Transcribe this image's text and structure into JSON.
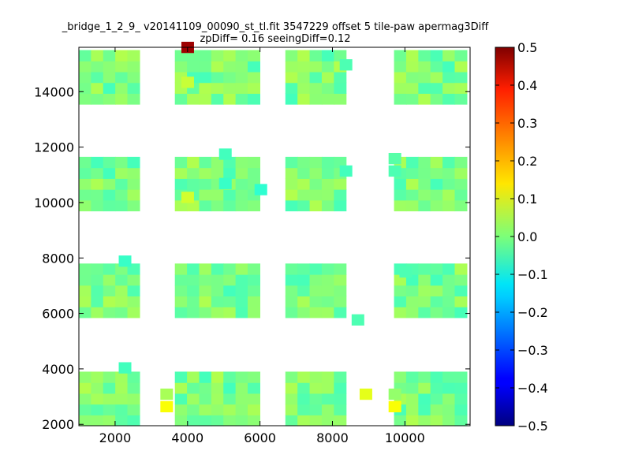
{
  "chart_data": {
    "type": "heatmap",
    "title": "_bridge_1_2_9_ v20141109_00090_st_tl.fit 3547229 offset 5 tile-paw apermag3Diff",
    "subtitle": "zpDiff= 0.16 seeingDiff=0.12",
    "xlabel": "",
    "ylabel": "",
    "xlim": [
      1000,
      11800
    ],
    "ylim": [
      1950,
      15600
    ],
    "x_ticks": [
      2000,
      4000,
      6000,
      8000,
      10000
    ],
    "y_ticks": [
      2000,
      4000,
      6000,
      8000,
      10000,
      12000,
      14000
    ],
    "x_tick_labels": [
      "2000",
      "4000",
      "6000",
      "8000",
      "10000"
    ],
    "y_tick_labels": [
      "2000",
      "4000",
      "6000",
      "8000",
      "10000",
      "12000",
      "14000"
    ],
    "colorbar": {
      "colormap": "jet",
      "vmin": -0.5,
      "vmax": 0.5,
      "ticks": [
        0.5,
        0.4,
        0.3,
        0.2,
        0.1,
        0.0,
        -0.1,
        -0.2,
        -0.3,
        -0.4,
        -0.5
      ],
      "tick_labels": [
        "0.5",
        "0.4",
        "0.3",
        "0.2",
        "0.1",
        "0.0",
        "−0.1",
        "−0.2",
        "−0.3",
        "−0.4",
        "−0.5"
      ]
    },
    "grid": false,
    "cell_width": 335,
    "cell_height": 390,
    "blocks": {
      "x_groups": [
        [
          1000,
          3000
        ],
        [
          3650,
          6000
        ],
        [
          6700,
          8700
        ],
        [
          9700,
          11800
        ]
      ],
      "y_groups": [
        [
          1950,
          4050
        ],
        [
          5850,
          7950
        ],
        [
          9700,
          11800
        ],
        [
          13550,
          15600
        ]
      ]
    },
    "special_cells": [
      {
        "x": 3830,
        "y": 15410,
        "value": 0.47
      },
      {
        "x": 3250,
        "y": 2450,
        "value": 0.12
      },
      {
        "x": 9550,
        "y": 2450,
        "value": 0.12
      },
      {
        "x": 8750,
        "y": 2900,
        "value": 0.1
      },
      {
        "x": 9550,
        "y": 2900,
        "value": 0.02
      },
      {
        "x": 3250,
        "y": 2900,
        "value": 0.04
      },
      {
        "x": 3830,
        "y": 10000,
        "value": 0.08
      },
      {
        "x": 3830,
        "y": 14150,
        "value": 0.07
      },
      {
        "x": 4870,
        "y": 10500,
        "value": -0.07
      },
      {
        "x": 4870,
        "y": 11560,
        "value": -0.06
      },
      {
        "x": 5850,
        "y": 10280,
        "value": -0.08
      },
      {
        "x": 2100,
        "y": 7700,
        "value": -0.07
      },
      {
        "x": 2100,
        "y": 3850,
        "value": -0.06
      },
      {
        "x": 8530,
        "y": 5580,
        "value": -0.05
      },
      {
        "x": 9550,
        "y": 10950,
        "value": -0.05
      },
      {
        "x": 9550,
        "y": 11400,
        "value": -0.04
      },
      {
        "x": 8200,
        "y": 10950,
        "value": -0.06
      },
      {
        "x": 8200,
        "y": 14780,
        "value": -0.05
      },
      {
        "x": 9850,
        "y": 7310,
        "value": -0.05
      }
    ]
  }
}
